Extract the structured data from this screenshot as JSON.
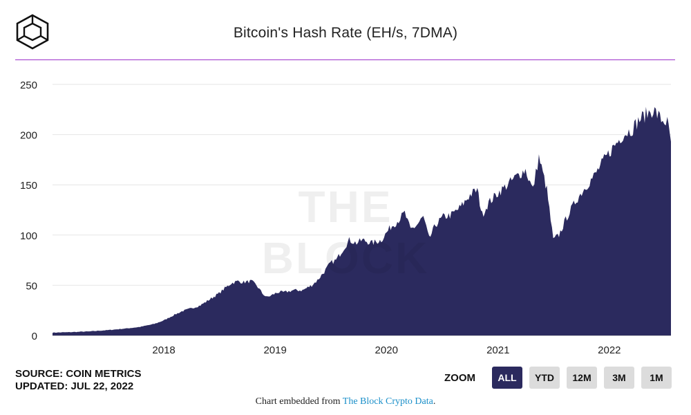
{
  "header": {
    "title": "Bitcoin's Hash Rate (EH/s, 7DMA)",
    "logo_icon": "cube-logo-icon"
  },
  "colors": {
    "series": "#2b2a5e",
    "rule": "#9b2fc9",
    "grid": "#e6e6e6",
    "active_button": "#2b2a5e",
    "link": "#1a8fc9"
  },
  "watermark": "THE BLOCK",
  "footer": {
    "source": "SOURCE: COIN METRICS",
    "updated": "UPDATED: JUL 22, 2022",
    "embed_prefix": "Chart embedded from ",
    "embed_link": "The Block Crypto Data",
    "embed_suffix": "."
  },
  "zoom": {
    "label": "ZOOM",
    "buttons": [
      {
        "label": "ALL",
        "active": true
      },
      {
        "label": "YTD",
        "active": false
      },
      {
        "label": "12M",
        "active": false
      },
      {
        "label": "3M",
        "active": false
      },
      {
        "label": "1M",
        "active": false
      }
    ]
  },
  "chart_data": {
    "type": "area",
    "title": "Bitcoin's Hash Rate (EH/s, 7DMA)",
    "xlabel": "",
    "ylabel": "",
    "xlim": [
      "2017-01-01",
      "2022-07-22"
    ],
    "ylim": [
      0,
      250
    ],
    "yticks": [
      0,
      50,
      100,
      150,
      200,
      250
    ],
    "xticks": [
      "2018",
      "2019",
      "2020",
      "2021",
      "2022"
    ],
    "grid": true,
    "legend": "none",
    "series": [
      {
        "values": [
          [
            "2017-01-01",
            2.8
          ],
          [
            "2017-03-01",
            3.3
          ],
          [
            "2017-05-01",
            4.0
          ],
          [
            "2017-07-01",
            5.3
          ],
          [
            "2017-09-01",
            7.0
          ],
          [
            "2017-10-15",
            8.5
          ],
          [
            "2017-12-01",
            11.5
          ],
          [
            "2018-01-01",
            15
          ],
          [
            "2018-02-01",
            20
          ],
          [
            "2018-03-01",
            24
          ],
          [
            "2018-04-01",
            27
          ],
          [
            "2018-05-01",
            30
          ],
          [
            "2018-06-01",
            36
          ],
          [
            "2018-07-01",
            42
          ],
          [
            "2018-07-20",
            47
          ],
          [
            "2018-08-10",
            52
          ],
          [
            "2018-09-01",
            54
          ],
          [
            "2018-09-20",
            53
          ],
          [
            "2018-10-15",
            54
          ],
          [
            "2018-11-01",
            50
          ],
          [
            "2018-11-20",
            42
          ],
          [
            "2018-12-05",
            38
          ],
          [
            "2018-12-20",
            40
          ],
          [
            "2019-01-10",
            43
          ],
          [
            "2019-02-01",
            43
          ],
          [
            "2019-03-01",
            45
          ],
          [
            "2019-04-01",
            45
          ],
          [
            "2019-05-01",
            50
          ],
          [
            "2019-05-20",
            55
          ],
          [
            "2019-06-15",
            65
          ],
          [
            "2019-07-01",
            72
          ],
          [
            "2019-07-20",
            75
          ],
          [
            "2019-08-10",
            85
          ],
          [
            "2019-09-01",
            95
          ],
          [
            "2019-09-25",
            92
          ],
          [
            "2019-10-15",
            95
          ],
          [
            "2019-11-15",
            92
          ],
          [
            "2019-12-15",
            95
          ],
          [
            "2020-01-15",
            108
          ],
          [
            "2020-02-10",
            115
          ],
          [
            "2020-03-01",
            122
          ],
          [
            "2020-03-20",
            105
          ],
          [
            "2020-04-10",
            110
          ],
          [
            "2020-05-01",
            118
          ],
          [
            "2020-05-20",
            96
          ],
          [
            "2020-06-10",
            110
          ],
          [
            "2020-07-05",
            118
          ],
          [
            "2020-08-01",
            120
          ],
          [
            "2020-09-01",
            128
          ],
          [
            "2020-10-01",
            140
          ],
          [
            "2020-10-25",
            145
          ],
          [
            "2020-11-10",
            120
          ],
          [
            "2020-12-01",
            132
          ],
          [
            "2021-01-01",
            142
          ],
          [
            "2021-02-01",
            150
          ],
          [
            "2021-03-01",
            158
          ],
          [
            "2021-04-01",
            165
          ],
          [
            "2021-04-25",
            145
          ],
          [
            "2021-05-15",
            178
          ],
          [
            "2021-06-10",
            145
          ],
          [
            "2021-07-01",
            95
          ],
          [
            "2021-07-20",
            100
          ],
          [
            "2021-08-15",
            118
          ],
          [
            "2021-09-15",
            135
          ],
          [
            "2021-10-15",
            148
          ],
          [
            "2021-11-15",
            160
          ],
          [
            "2021-12-15",
            175
          ],
          [
            "2022-01-15",
            188
          ],
          [
            "2022-02-15",
            200
          ],
          [
            "2022-03-15",
            205
          ],
          [
            "2022-04-10",
            215
          ],
          [
            "2022-05-01",
            220
          ],
          [
            "2022-05-25",
            225
          ],
          [
            "2022-06-20",
            215
          ],
          [
            "2022-07-10",
            212
          ],
          [
            "2022-07-22",
            193
          ]
        ]
      }
    ]
  }
}
